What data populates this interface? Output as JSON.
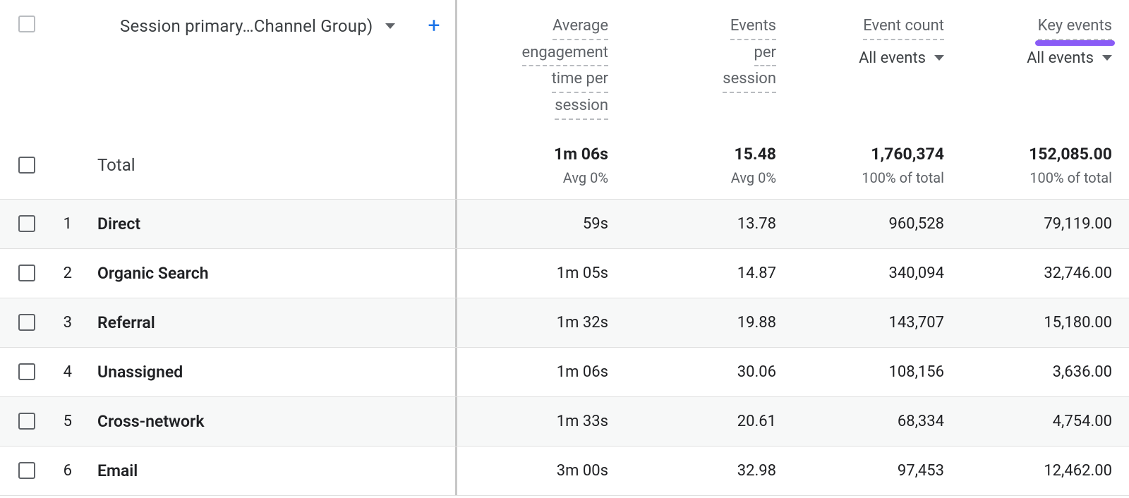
{
  "colors": {
    "background": "#ffffff",
    "row_alt": "#f7f8f8",
    "text_primary": "#202124",
    "text_secondary": "#5f6368",
    "border": "#e0e0e0",
    "pane_divider": "#c7c7c7",
    "checkbox_border": "#5f6368",
    "header_checkbox_border": "#b9bcc0",
    "accent_blue": "#1a73e8",
    "accent_purple": "#8a5cf6"
  },
  "dimension": {
    "label": "Session primary…Channel Group)",
    "add_button": "+"
  },
  "columns": {
    "avg_engagement": {
      "lines": [
        "Average",
        "engagement",
        "time per",
        "session"
      ]
    },
    "events_per_session": {
      "lines": [
        "Events",
        "per",
        "session"
      ]
    },
    "event_count": {
      "label": "Event count",
      "filter": "All events"
    },
    "key_events": {
      "label": "Key events",
      "filter": "All events",
      "highlight_color": "#8a5cf6"
    }
  },
  "totals": {
    "label": "Total",
    "avg_engagement": "1m 06s",
    "avg_engagement_sub": "Avg 0%",
    "events_per_session": "15.48",
    "events_per_session_sub": "Avg 0%",
    "event_count": "1,760,374",
    "event_count_sub": "100% of total",
    "key_events": "152,085.00",
    "key_events_sub": "100% of total"
  },
  "rows": [
    {
      "idx": "1",
      "name": "Direct",
      "avg_engagement": "59s",
      "events_per_session": "13.78",
      "event_count": "960,528",
      "key_events": "79,119.00"
    },
    {
      "idx": "2",
      "name": "Organic Search",
      "avg_engagement": "1m 05s",
      "events_per_session": "14.87",
      "event_count": "340,094",
      "key_events": "32,746.00"
    },
    {
      "idx": "3",
      "name": "Referral",
      "avg_engagement": "1m 32s",
      "events_per_session": "19.88",
      "event_count": "143,707",
      "key_events": "15,180.00"
    },
    {
      "idx": "4",
      "name": "Unassigned",
      "avg_engagement": "1m 06s",
      "events_per_session": "30.06",
      "event_count": "108,156",
      "key_events": "3,636.00"
    },
    {
      "idx": "5",
      "name": "Cross-network",
      "avg_engagement": "1m 33s",
      "events_per_session": "20.61",
      "event_count": "68,334",
      "key_events": "4,754.00"
    },
    {
      "idx": "6",
      "name": "Email",
      "avg_engagement": "3m 00s",
      "events_per_session": "32.98",
      "event_count": "97,453",
      "key_events": "12,462.00"
    }
  ]
}
